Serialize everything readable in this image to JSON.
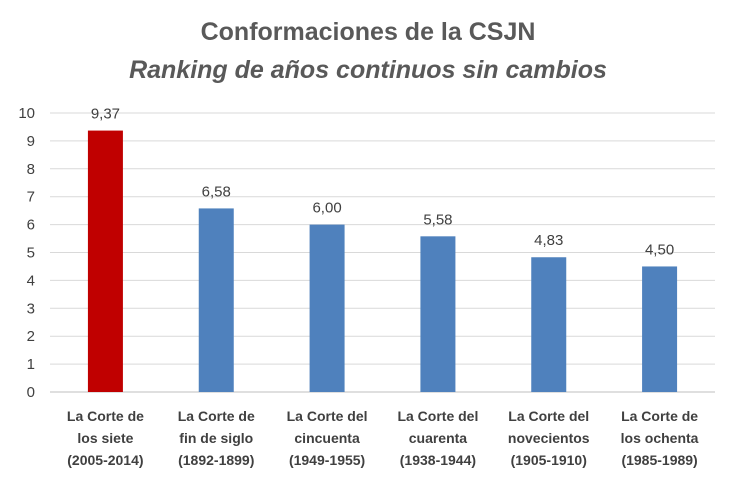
{
  "chart_data": {
    "type": "bar",
    "title": "Conformaciones de la CSJN",
    "subtitle": "Ranking de años continuos sin cambios",
    "categories": [
      [
        "La Corte de",
        "los siete",
        "(2005-2014)"
      ],
      [
        "La Corte de",
        "fin de siglo",
        "(1892-1899)"
      ],
      [
        "La Corte del",
        "cincuenta",
        "(1949-1955)"
      ],
      [
        "La Corte del",
        "cuarenta",
        "(1938-1944)"
      ],
      [
        "La Corte del",
        "novecientos",
        "(1905-1910)"
      ],
      [
        "La Corte de",
        "los ochenta",
        "(1985-1989)"
      ]
    ],
    "values": [
      9.37,
      6.58,
      6.0,
      5.58,
      4.83,
      4.5
    ],
    "value_labels": [
      "9,37",
      "6,58",
      "6,00",
      "5,58",
      "4,83",
      "4,50"
    ],
    "bar_colors": [
      "#c00000",
      "#4f81bd",
      "#4f81bd",
      "#4f81bd",
      "#4f81bd",
      "#4f81bd"
    ],
    "ylim": [
      0,
      10
    ],
    "yticks": [
      "0",
      "1",
      "2",
      "3",
      "4",
      "5",
      "6",
      "7",
      "8",
      "9",
      "10"
    ],
    "grid": true,
    "gridColor": "#d9d9d9",
    "xlabel": "",
    "ylabel": ""
  }
}
